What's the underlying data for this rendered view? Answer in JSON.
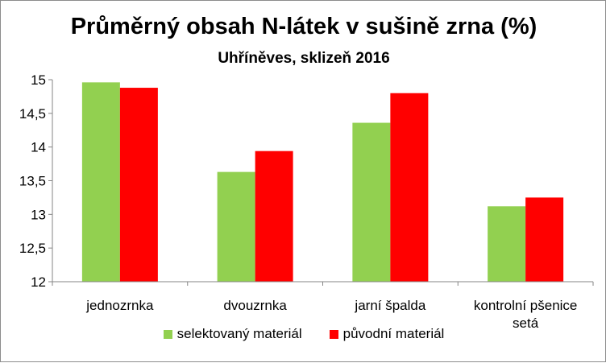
{
  "chart_data": {
    "type": "bar",
    "title": "Průměrný obsah N-látek v sušině zrna (%)",
    "subtitle": "Uhříněves, sklizeň 2016",
    "xlabel": "",
    "ylabel": "",
    "categories": [
      [
        "jednozrnka"
      ],
      [
        "dvouzrnka"
      ],
      [
        "jarní špalda"
      ],
      [
        "kontrolní pšenice",
        "setá"
      ]
    ],
    "series": [
      {
        "name": "selektovaný materiál",
        "color": "#92d050",
        "values": [
          14.96,
          13.63,
          14.36,
          13.12
        ]
      },
      {
        "name": "původní materiál",
        "color": "#ff0000",
        "values": [
          14.88,
          13.94,
          14.8,
          13.25
        ]
      }
    ],
    "ylim": [
      12,
      15
    ],
    "yticks": [
      {
        "value": 12,
        "label": "12"
      },
      {
        "value": 12.5,
        "label": "12,5"
      },
      {
        "value": 13,
        "label": "13"
      },
      {
        "value": 13.5,
        "label": "13,5"
      },
      {
        "value": 14,
        "label": "14"
      },
      {
        "value": 14.5,
        "label": "14,5"
      },
      {
        "value": 15,
        "label": "15"
      }
    ],
    "grid": false,
    "legend_position": "bottom"
  }
}
